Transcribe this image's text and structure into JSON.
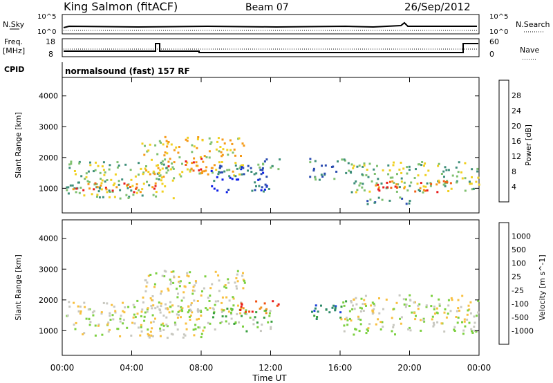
{
  "header": {
    "station": "King Salmon (fitACF)",
    "beam": "Beam 07",
    "date": "26/Sep/2012"
  },
  "noise_panel": {
    "left_label": "N.Sky",
    "right_label": "N.Search",
    "left_ticks": [
      "10^5",
      "10^0"
    ],
    "right_ticks": [
      "10^5",
      "10^0"
    ]
  },
  "freq_panel": {
    "left_label_line1": "Freq.",
    "left_label_line2": "[MHz]",
    "right_label": "Nave",
    "left_ticks": [
      "18",
      "8"
    ],
    "right_ticks": [
      "60",
      "0"
    ]
  },
  "cpid": {
    "label": "CPID",
    "value": "normalsound (fast) 157 RF"
  },
  "time_axis": {
    "label": "Time UT",
    "ticks": [
      "00:00",
      "04:00",
      "08:00",
      "12:00",
      "16:00",
      "20:00",
      "00:00"
    ]
  },
  "chart_data": [
    {
      "type": "heatmap",
      "name": "power",
      "ylabel": "Slant Range [km]",
      "yticks": [
        "1000",
        "2000",
        "3000",
        "4000"
      ],
      "ylim": [
        200,
        4600
      ],
      "xlim_hours": [
        0,
        24
      ],
      "colorbar_label": "Power [dB]",
      "colorbar_ticks": [
        "4",
        "8",
        "12",
        "16",
        "20",
        "24",
        "28"
      ],
      "colors": [
        "#0c1ee8",
        "#2b4cb0",
        "#3f8f7a",
        "#7fc070",
        "#f0d020",
        "#f59a18",
        "#f06018",
        "#e81c1c"
      ],
      "bands": [
        {
          "t": [
            0.2,
            6.5
          ],
          "r": [
            700,
            1900
          ],
          "level": 3
        },
        {
          "t": [
            0.5,
            5.5
          ],
          "r": [
            900,
            1200
          ],
          "level": 6
        },
        {
          "t": [
            4.5,
            10.5
          ],
          "r": [
            1400,
            2700
          ],
          "level": 4
        },
        {
          "t": [
            6.0,
            8.0
          ],
          "r": [
            1600,
            2000
          ],
          "level": 6
        },
        {
          "t": [
            8.5,
            12.0
          ],
          "r": [
            900,
            1800
          ],
          "level": 1
        },
        {
          "t": [
            10.0,
            12.5
          ],
          "r": [
            1600,
            2000
          ],
          "level": 2
        },
        {
          "t": [
            14.2,
            16.5
          ],
          "r": [
            1300,
            2000
          ],
          "level": 2
        },
        {
          "t": [
            16.5,
            24.0
          ],
          "r": [
            900,
            1900
          ],
          "level": 3
        },
        {
          "t": [
            18.0,
            22.5
          ],
          "r": [
            900,
            1300
          ],
          "level": 6
        },
        {
          "t": [
            17.5,
            20.0
          ],
          "r": [
            500,
            800
          ],
          "level": 2
        }
      ]
    },
    {
      "type": "heatmap",
      "name": "velocity",
      "ylabel": "Slant Range [km]",
      "yticks": [
        "1000",
        "2000",
        "3000",
        "4000"
      ],
      "ylim": [
        200,
        4600
      ],
      "xlim_hours": [
        0,
        24
      ],
      "colorbar_label": "Velocity [m s^-1]",
      "colorbar_ticks": [
        "1000",
        "500",
        "100",
        "25",
        "-25",
        "-100",
        "-500",
        "-1000"
      ],
      "colors": [
        "#1840d8",
        "#2e8a6a",
        "#3aa040",
        "#7cd040",
        "#c8c8c0",
        "#f8c040",
        "#f09020",
        "#f05010",
        "#e81c1c"
      ],
      "bands": [
        {
          "t": [
            0.2,
            8.5
          ],
          "r": [
            800,
            2000
          ],
          "level": 4
        },
        {
          "t": [
            4.5,
            10.5
          ],
          "r": [
            1600,
            3000
          ],
          "level": 4
        },
        {
          "t": [
            8.5,
            12.0
          ],
          "r": [
            1000,
            1800
          ],
          "level": 3
        },
        {
          "t": [
            10.0,
            12.5
          ],
          "r": [
            1600,
            2000
          ],
          "level": 7
        },
        {
          "t": [
            14.3,
            16.5
          ],
          "r": [
            1400,
            2000
          ],
          "level": 1
        },
        {
          "t": [
            16.0,
            24.0
          ],
          "r": [
            900,
            2200
          ],
          "level": 4
        }
      ]
    }
  ]
}
